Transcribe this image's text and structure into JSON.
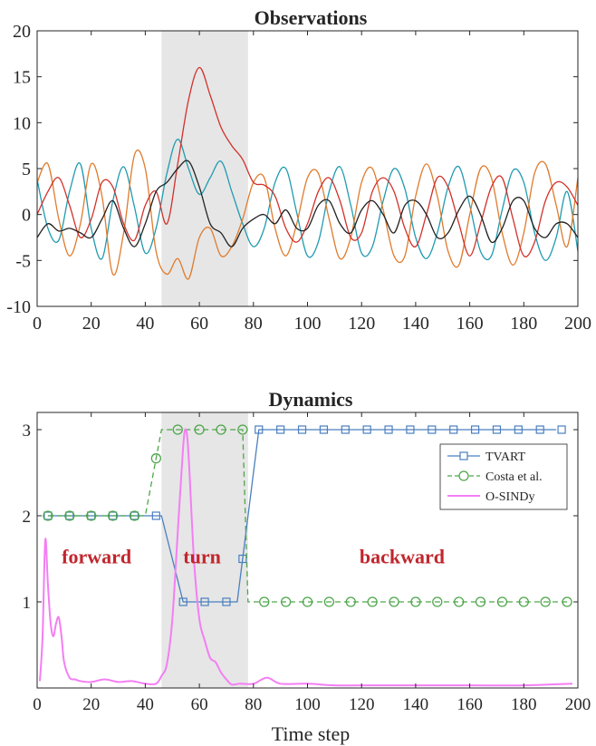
{
  "chart_data": [
    {
      "type": "line",
      "title": "Observations",
      "xlabel": "",
      "ylabel": "",
      "xlim": [
        0,
        200
      ],
      "ylim": [
        -10,
        20
      ],
      "xticks": [
        0,
        20,
        40,
        60,
        80,
        100,
        120,
        140,
        160,
        180,
        200
      ],
      "yticks": [
        -10,
        -5,
        0,
        5,
        10,
        15,
        20
      ],
      "shaded_region": [
        46,
        78
      ],
      "grid": false,
      "series": [
        {
          "color": "#1f9bb0",
          "x": [
            0,
            4,
            8,
            12,
            16,
            20,
            24,
            28,
            32,
            36,
            40,
            44,
            48,
            52,
            56,
            60,
            64,
            68,
            72,
            76,
            80,
            84,
            88,
            92,
            96,
            100,
            104,
            108,
            112,
            116,
            120,
            124,
            128,
            132,
            136,
            140,
            144,
            148,
            152,
            156,
            160,
            164,
            168,
            172,
            176,
            180,
            184,
            188,
            192,
            196,
            200
          ],
          "values": [
            3.8,
            -1.5,
            -2.8,
            2.5,
            5.5,
            -1.5,
            -4.8,
            1.5,
            5.2,
            0.8,
            -4.2,
            -1.5,
            4.5,
            8.2,
            5.0,
            2.2,
            4.0,
            5.8,
            2.5,
            -1.0,
            -3.5,
            -1.5,
            3.5,
            5.0,
            0.2,
            -4.5,
            -3.0,
            2.5,
            5.2,
            1.0,
            -4.2,
            -3.5,
            1.5,
            5.0,
            2.8,
            -2.5,
            -4.8,
            -2.0,
            3.0,
            5.2,
            1.0,
            -4.0,
            -4.5,
            0.5,
            4.8,
            3.5,
            -2.0,
            -5.0,
            -2.5,
            2.5,
            -4.0
          ]
        },
        {
          "color": "#e07b2c",
          "x": [
            0,
            4,
            8,
            12,
            16,
            20,
            24,
            28,
            32,
            36,
            40,
            44,
            48,
            52,
            56,
            60,
            64,
            68,
            72,
            76,
            80,
            84,
            88,
            92,
            96,
            100,
            104,
            108,
            112,
            116,
            120,
            124,
            128,
            132,
            136,
            140,
            144,
            148,
            152,
            156,
            160,
            164,
            168,
            172,
            176,
            180,
            184,
            188,
            192,
            196,
            200
          ],
          "values": [
            3.5,
            5.5,
            -0.5,
            -4.5,
            -1.0,
            5.5,
            2.0,
            -6.5,
            -2.0,
            6.5,
            5.0,
            -4.0,
            -6.5,
            -4.8,
            -7.0,
            -2.5,
            -1.5,
            -4.5,
            -3.5,
            -0.5,
            3.5,
            4.0,
            -1.5,
            -4.5,
            -1.0,
            4.0,
            4.5,
            -0.5,
            -4.8,
            -2.5,
            3.5,
            5.0,
            0.5,
            -4.5,
            -4.5,
            2.0,
            5.5,
            2.0,
            -4.0,
            -5.5,
            0.0,
            5.0,
            4.0,
            -2.0,
            -5.5,
            -2.0,
            4.5,
            5.5,
            1.0,
            -3.5,
            4.0
          ]
        },
        {
          "color": "#d2312a",
          "x": [
            0,
            4,
            8,
            12,
            16,
            20,
            24,
            28,
            32,
            36,
            40,
            44,
            48,
            52,
            56,
            60,
            64,
            68,
            72,
            76,
            80,
            84,
            88,
            92,
            96,
            100,
            104,
            108,
            112,
            116,
            120,
            124,
            128,
            132,
            136,
            140,
            144,
            148,
            152,
            156,
            160,
            164,
            168,
            172,
            176,
            180,
            184,
            188,
            192,
            196,
            200
          ],
          "values": [
            0.0,
            2.5,
            4.0,
            1.0,
            -2.5,
            -0.5,
            3.5,
            3.0,
            -1.0,
            -2.8,
            1.0,
            2.5,
            -1.0,
            5.5,
            12.5,
            16.0,
            13.0,
            9.5,
            7.5,
            6.0,
            3.5,
            3.2,
            2.0,
            -1.5,
            -3.0,
            -1.0,
            2.5,
            4.0,
            1.5,
            -2.5,
            -2.0,
            2.5,
            4.0,
            2.5,
            -1.5,
            -3.5,
            0.0,
            4.0,
            3.0,
            -1.0,
            -4.5,
            -1.0,
            3.0,
            4.0,
            -0.5,
            -4.5,
            -3.0,
            1.5,
            3.5,
            3.0,
            1.0
          ]
        },
        {
          "color": "#222222",
          "x": [
            0,
            4,
            8,
            12,
            16,
            20,
            24,
            28,
            32,
            36,
            40,
            44,
            48,
            52,
            56,
            60,
            64,
            68,
            72,
            76,
            80,
            84,
            88,
            92,
            96,
            100,
            104,
            108,
            112,
            116,
            120,
            124,
            128,
            132,
            136,
            140,
            144,
            148,
            152,
            156,
            160,
            164,
            168,
            172,
            176,
            180,
            184,
            188,
            192,
            196,
            200
          ],
          "values": [
            -2.5,
            -1.0,
            -1.8,
            -1.5,
            -2.0,
            -2.5,
            -0.5,
            1.5,
            -1.5,
            -3.5,
            -1.0,
            2.5,
            3.5,
            5.0,
            5.8,
            3.0,
            -1.0,
            -2.0,
            -3.5,
            -1.5,
            -0.5,
            0.0,
            -1.0,
            0.5,
            -1.5,
            -1.5,
            1.0,
            1.5,
            -1.0,
            -2.0,
            0.5,
            1.5,
            0.0,
            -2.0,
            1.0,
            1.5,
            0.0,
            -2.5,
            -2.0,
            0.5,
            2.0,
            0.0,
            -3.0,
            -1.5,
            1.5,
            1.5,
            -1.5,
            -2.5,
            -1.0,
            -1.0,
            -2.5
          ]
        }
      ]
    },
    {
      "type": "line",
      "title": "Dynamics",
      "xlabel": "Time step",
      "ylabel": "",
      "xlim": [
        0,
        200
      ],
      "ylim": [
        0,
        3.2
      ],
      "xticks": [
        0,
        20,
        40,
        60,
        80,
        100,
        120,
        140,
        160,
        180,
        200
      ],
      "yticks": [
        1,
        2,
        3
      ],
      "shaded_region": [
        46,
        78
      ],
      "legend_position": "top-right",
      "grid": false,
      "annotations": [
        {
          "text": "forward",
          "x": 22,
          "y": 1.53,
          "color": "#c0262d"
        },
        {
          "text": "turn",
          "x": 61,
          "y": 1.53,
          "color": "#c0262d"
        },
        {
          "text": "backward",
          "x": 135,
          "y": 1.53,
          "color": "#c0262d"
        }
      ],
      "series": [
        {
          "name": "TVART",
          "color": "#4a7fbf",
          "style": "solid",
          "marker": "square",
          "x": [
            4,
            12,
            20,
            28,
            36,
            44,
            46,
            54,
            64,
            74,
            82,
            92,
            102,
            112,
            122,
            132,
            142,
            152,
            162,
            172,
            182,
            192
          ],
          "values": [
            2,
            2,
            2,
            2,
            2,
            2,
            2,
            1,
            1,
            1,
            3,
            3,
            3,
            3,
            3,
            3,
            3,
            3,
            3,
            3,
            3,
            3
          ],
          "marker_x": [
            4,
            12,
            20,
            28,
            36,
            44,
            54,
            62,
            70,
            76,
            82,
            90,
            98,
            106,
            114,
            122,
            130,
            138,
            146,
            154,
            162,
            170,
            178,
            186,
            194
          ]
        },
        {
          "name": "Costa et al.",
          "color": "#4ea64a",
          "style": "dashed",
          "marker": "circle",
          "x": [
            4,
            40,
            46,
            76,
            78,
            196
          ],
          "values": [
            2,
            2,
            3,
            3,
            1,
            1
          ],
          "marker_x": [
            4,
            12,
            20,
            28,
            36,
            44,
            52,
            60,
            68,
            76,
            84,
            92,
            100,
            108,
            116,
            124,
            132,
            140,
            148,
            156,
            164,
            172,
            180,
            188,
            196
          ]
        },
        {
          "name": "O-SINDy",
          "color": "#f47ef4",
          "style": "solid",
          "marker": "none",
          "x": [
            1,
            2,
            3,
            4,
            5,
            6,
            7,
            8,
            9,
            10,
            12,
            14,
            16,
            20,
            25,
            30,
            35,
            40,
            44,
            46,
            48,
            50,
            52,
            54,
            55,
            56,
            58,
            60,
            62,
            64,
            66,
            68,
            70,
            72,
            75,
            80,
            85,
            90,
            100,
            110,
            120,
            140,
            160,
            180,
            198
          ],
          "values": [
            0.08,
            0.6,
            1.72,
            1.2,
            0.75,
            0.6,
            0.75,
            0.82,
            0.6,
            0.3,
            0.12,
            0.1,
            0.08,
            0.07,
            0.1,
            0.07,
            0.08,
            0.05,
            0.05,
            0.14,
            0.28,
            0.8,
            1.8,
            2.8,
            3.0,
            2.7,
            1.5,
            0.8,
            0.55,
            0.35,
            0.3,
            0.18,
            0.1,
            0.04,
            0.05,
            0.05,
            0.12,
            0.05,
            0.05,
            0.03,
            0.03,
            0.03,
            0.03,
            0.03,
            0.05
          ]
        }
      ]
    }
  ]
}
